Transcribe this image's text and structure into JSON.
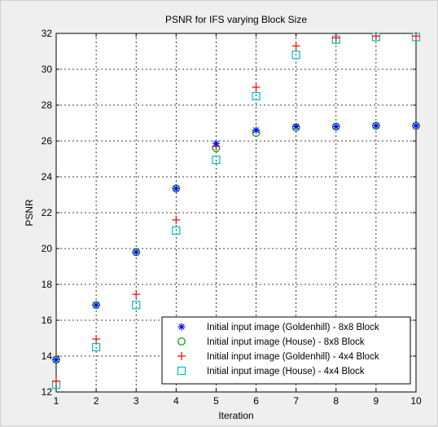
{
  "chart_data": {
    "type": "scatter",
    "title": "PSNR for IFS varying Block Size",
    "xlabel": "Iteration",
    "ylabel": "PSNR",
    "xlim": [
      1,
      10
    ],
    "ylim": [
      12,
      32
    ],
    "xticks": [
      1,
      2,
      3,
      4,
      5,
      6,
      7,
      8,
      9,
      10
    ],
    "yticks": [
      12,
      14,
      16,
      18,
      20,
      22,
      24,
      26,
      28,
      30,
      32
    ],
    "grid": true,
    "legend_position": "bottom-right",
    "x": [
      1,
      2,
      3,
      4,
      5,
      6,
      7,
      8,
      9,
      10
    ],
    "series": [
      {
        "name": "Initial input image (Goldenhill) - 8x8 Block",
        "marker": "asterisk",
        "color": "#0000ff",
        "values": [
          13.8,
          16.85,
          19.8,
          23.35,
          25.85,
          26.6,
          26.8,
          26.8,
          26.85,
          26.85
        ]
      },
      {
        "name": "Initial input image (House) - 8x8 Block",
        "marker": "circle",
        "color": "#009900",
        "values": [
          13.8,
          16.85,
          19.8,
          23.35,
          25.6,
          26.45,
          26.75,
          26.8,
          26.85,
          26.85
        ]
      },
      {
        "name": "Initial input image (Goldenhill) - 4x4 Block",
        "marker": "plus",
        "color": "#ff0000",
        "values": [
          12.6,
          14.95,
          17.45,
          21.6,
          25.7,
          29.0,
          31.3,
          31.75,
          31.85,
          31.85
        ]
      },
      {
        "name": "Initial input image (House) - 4x4 Block",
        "marker": "square",
        "color": "#00bfbf",
        "values": [
          12.4,
          14.5,
          16.85,
          21.0,
          24.95,
          28.5,
          30.8,
          31.65,
          31.8,
          31.8
        ]
      }
    ]
  }
}
